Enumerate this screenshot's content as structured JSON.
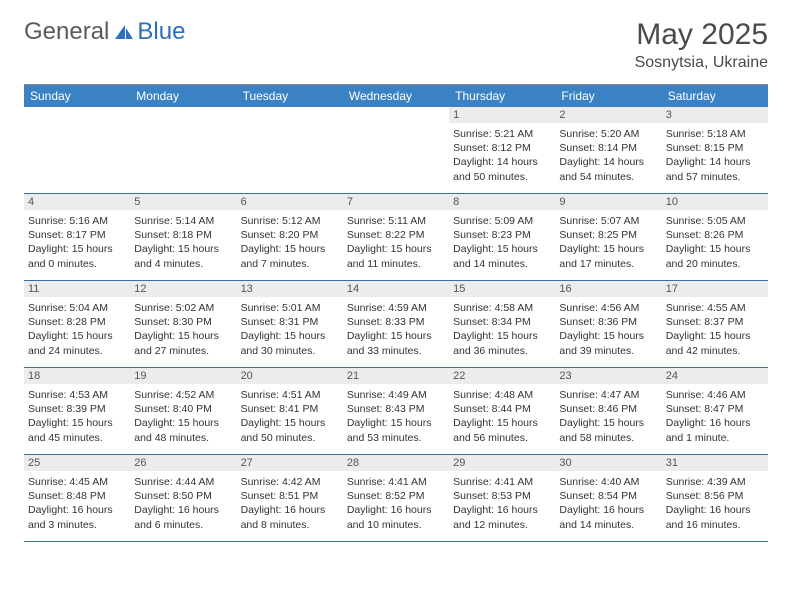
{
  "logo": {
    "general": "General",
    "blue": "Blue"
  },
  "title": "May 2025",
  "location": "Sosnytsia, Ukraine",
  "colors": {
    "header_bg": "#3b82c4",
    "header_text": "#ffffff",
    "daynum_bg": "#ececec",
    "border": "#3b6fa8",
    "logo_gray": "#5a5a5a",
    "logo_blue": "#2d6fb8"
  },
  "day_names": [
    "Sunday",
    "Monday",
    "Tuesday",
    "Wednesday",
    "Thursday",
    "Friday",
    "Saturday"
  ],
  "weeks": [
    [
      {
        "empty": true
      },
      {
        "empty": true
      },
      {
        "empty": true
      },
      {
        "empty": true
      },
      {
        "day": "1",
        "sunrise": "Sunrise: 5:21 AM",
        "sunset": "Sunset: 8:12 PM",
        "daylight1": "Daylight: 14 hours",
        "daylight2": "and 50 minutes."
      },
      {
        "day": "2",
        "sunrise": "Sunrise: 5:20 AM",
        "sunset": "Sunset: 8:14 PM",
        "daylight1": "Daylight: 14 hours",
        "daylight2": "and 54 minutes."
      },
      {
        "day": "3",
        "sunrise": "Sunrise: 5:18 AM",
        "sunset": "Sunset: 8:15 PM",
        "daylight1": "Daylight: 14 hours",
        "daylight2": "and 57 minutes."
      }
    ],
    [
      {
        "day": "4",
        "sunrise": "Sunrise: 5:16 AM",
        "sunset": "Sunset: 8:17 PM",
        "daylight1": "Daylight: 15 hours",
        "daylight2": "and 0 minutes."
      },
      {
        "day": "5",
        "sunrise": "Sunrise: 5:14 AM",
        "sunset": "Sunset: 8:18 PM",
        "daylight1": "Daylight: 15 hours",
        "daylight2": "and 4 minutes."
      },
      {
        "day": "6",
        "sunrise": "Sunrise: 5:12 AM",
        "sunset": "Sunset: 8:20 PM",
        "daylight1": "Daylight: 15 hours",
        "daylight2": "and 7 minutes."
      },
      {
        "day": "7",
        "sunrise": "Sunrise: 5:11 AM",
        "sunset": "Sunset: 8:22 PM",
        "daylight1": "Daylight: 15 hours",
        "daylight2": "and 11 minutes."
      },
      {
        "day": "8",
        "sunrise": "Sunrise: 5:09 AM",
        "sunset": "Sunset: 8:23 PM",
        "daylight1": "Daylight: 15 hours",
        "daylight2": "and 14 minutes."
      },
      {
        "day": "9",
        "sunrise": "Sunrise: 5:07 AM",
        "sunset": "Sunset: 8:25 PM",
        "daylight1": "Daylight: 15 hours",
        "daylight2": "and 17 minutes."
      },
      {
        "day": "10",
        "sunrise": "Sunrise: 5:05 AM",
        "sunset": "Sunset: 8:26 PM",
        "daylight1": "Daylight: 15 hours",
        "daylight2": "and 20 minutes."
      }
    ],
    [
      {
        "day": "11",
        "sunrise": "Sunrise: 5:04 AM",
        "sunset": "Sunset: 8:28 PM",
        "daylight1": "Daylight: 15 hours",
        "daylight2": "and 24 minutes."
      },
      {
        "day": "12",
        "sunrise": "Sunrise: 5:02 AM",
        "sunset": "Sunset: 8:30 PM",
        "daylight1": "Daylight: 15 hours",
        "daylight2": "and 27 minutes."
      },
      {
        "day": "13",
        "sunrise": "Sunrise: 5:01 AM",
        "sunset": "Sunset: 8:31 PM",
        "daylight1": "Daylight: 15 hours",
        "daylight2": "and 30 minutes."
      },
      {
        "day": "14",
        "sunrise": "Sunrise: 4:59 AM",
        "sunset": "Sunset: 8:33 PM",
        "daylight1": "Daylight: 15 hours",
        "daylight2": "and 33 minutes."
      },
      {
        "day": "15",
        "sunrise": "Sunrise: 4:58 AM",
        "sunset": "Sunset: 8:34 PM",
        "daylight1": "Daylight: 15 hours",
        "daylight2": "and 36 minutes."
      },
      {
        "day": "16",
        "sunrise": "Sunrise: 4:56 AM",
        "sunset": "Sunset: 8:36 PM",
        "daylight1": "Daylight: 15 hours",
        "daylight2": "and 39 minutes."
      },
      {
        "day": "17",
        "sunrise": "Sunrise: 4:55 AM",
        "sunset": "Sunset: 8:37 PM",
        "daylight1": "Daylight: 15 hours",
        "daylight2": "and 42 minutes."
      }
    ],
    [
      {
        "day": "18",
        "sunrise": "Sunrise: 4:53 AM",
        "sunset": "Sunset: 8:39 PM",
        "daylight1": "Daylight: 15 hours",
        "daylight2": "and 45 minutes."
      },
      {
        "day": "19",
        "sunrise": "Sunrise: 4:52 AM",
        "sunset": "Sunset: 8:40 PM",
        "daylight1": "Daylight: 15 hours",
        "daylight2": "and 48 minutes."
      },
      {
        "day": "20",
        "sunrise": "Sunrise: 4:51 AM",
        "sunset": "Sunset: 8:41 PM",
        "daylight1": "Daylight: 15 hours",
        "daylight2": "and 50 minutes."
      },
      {
        "day": "21",
        "sunrise": "Sunrise: 4:49 AM",
        "sunset": "Sunset: 8:43 PM",
        "daylight1": "Daylight: 15 hours",
        "daylight2": "and 53 minutes."
      },
      {
        "day": "22",
        "sunrise": "Sunrise: 4:48 AM",
        "sunset": "Sunset: 8:44 PM",
        "daylight1": "Daylight: 15 hours",
        "daylight2": "and 56 minutes."
      },
      {
        "day": "23",
        "sunrise": "Sunrise: 4:47 AM",
        "sunset": "Sunset: 8:46 PM",
        "daylight1": "Daylight: 15 hours",
        "daylight2": "and 58 minutes."
      },
      {
        "day": "24",
        "sunrise": "Sunrise: 4:46 AM",
        "sunset": "Sunset: 8:47 PM",
        "daylight1": "Daylight: 16 hours",
        "daylight2": "and 1 minute."
      }
    ],
    [
      {
        "day": "25",
        "sunrise": "Sunrise: 4:45 AM",
        "sunset": "Sunset: 8:48 PM",
        "daylight1": "Daylight: 16 hours",
        "daylight2": "and 3 minutes."
      },
      {
        "day": "26",
        "sunrise": "Sunrise: 4:44 AM",
        "sunset": "Sunset: 8:50 PM",
        "daylight1": "Daylight: 16 hours",
        "daylight2": "and 6 minutes."
      },
      {
        "day": "27",
        "sunrise": "Sunrise: 4:42 AM",
        "sunset": "Sunset: 8:51 PM",
        "daylight1": "Daylight: 16 hours",
        "daylight2": "and 8 minutes."
      },
      {
        "day": "28",
        "sunrise": "Sunrise: 4:41 AM",
        "sunset": "Sunset: 8:52 PM",
        "daylight1": "Daylight: 16 hours",
        "daylight2": "and 10 minutes."
      },
      {
        "day": "29",
        "sunrise": "Sunrise: 4:41 AM",
        "sunset": "Sunset: 8:53 PM",
        "daylight1": "Daylight: 16 hours",
        "daylight2": "and 12 minutes."
      },
      {
        "day": "30",
        "sunrise": "Sunrise: 4:40 AM",
        "sunset": "Sunset: 8:54 PM",
        "daylight1": "Daylight: 16 hours",
        "daylight2": "and 14 minutes."
      },
      {
        "day": "31",
        "sunrise": "Sunrise: 4:39 AM",
        "sunset": "Sunset: 8:56 PM",
        "daylight1": "Daylight: 16 hours",
        "daylight2": "and 16 minutes."
      }
    ]
  ]
}
